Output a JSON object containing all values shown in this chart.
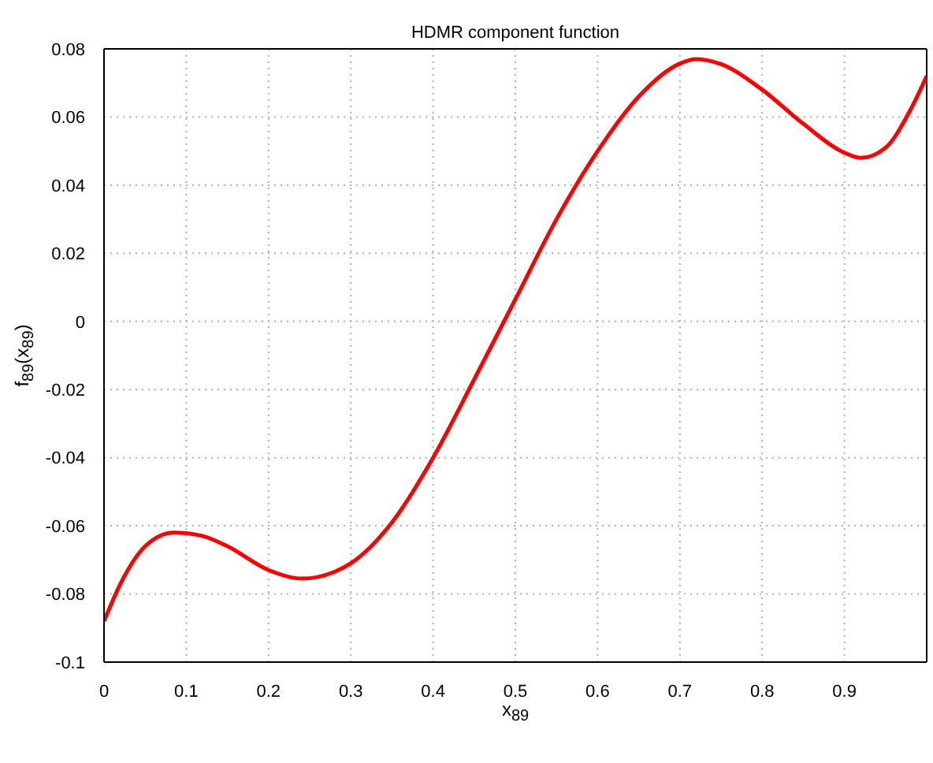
{
  "chart_data": {
    "type": "line",
    "title": "HDMR component function",
    "xlabel": "x$_{89}$",
    "ylabel": "f$_{89}$(x$_{89}$)",
    "x": [
      0,
      0.02,
      0.05,
      0.085,
      0.12,
      0.15,
      0.2,
      0.24,
      0.28,
      0.3,
      0.35,
      0.4,
      0.45,
      0.5,
      0.55,
      0.6,
      0.65,
      0.7,
      0.72,
      0.75,
      0.8,
      0.85,
      0.9,
      0.92,
      0.95,
      0.98,
      1.0
    ],
    "series": [
      {
        "color": "#ff0000",
        "values": [
          -0.088,
          -0.077,
          -0.066,
          -0.062,
          -0.063,
          -0.066,
          -0.073,
          -0.0755,
          -0.0735,
          -0.071,
          -0.059,
          -0.04,
          -0.017,
          0.0065,
          0.03,
          0.05,
          0.066,
          0.0757,
          0.077,
          0.0755,
          0.068,
          0.058,
          0.0495,
          0.048,
          0.051,
          0.062,
          0.072
        ]
      }
    ],
    "xlim": [
      0,
      1
    ],
    "xticks": [
      0,
      0.1,
      0.2,
      0.3,
      0.4,
      0.5,
      0.6,
      0.7,
      0.8,
      0.9
    ],
    "ylim": [
      -0.1,
      0.08
    ],
    "yticks": [
      -0.1,
      -0.08,
      -0.06,
      -0.04,
      -0.02,
      0,
      0.02,
      0.04,
      0.06,
      0.08
    ],
    "grid": true,
    "legend": false,
    "marker": "none",
    "line_style": "solid"
  }
}
